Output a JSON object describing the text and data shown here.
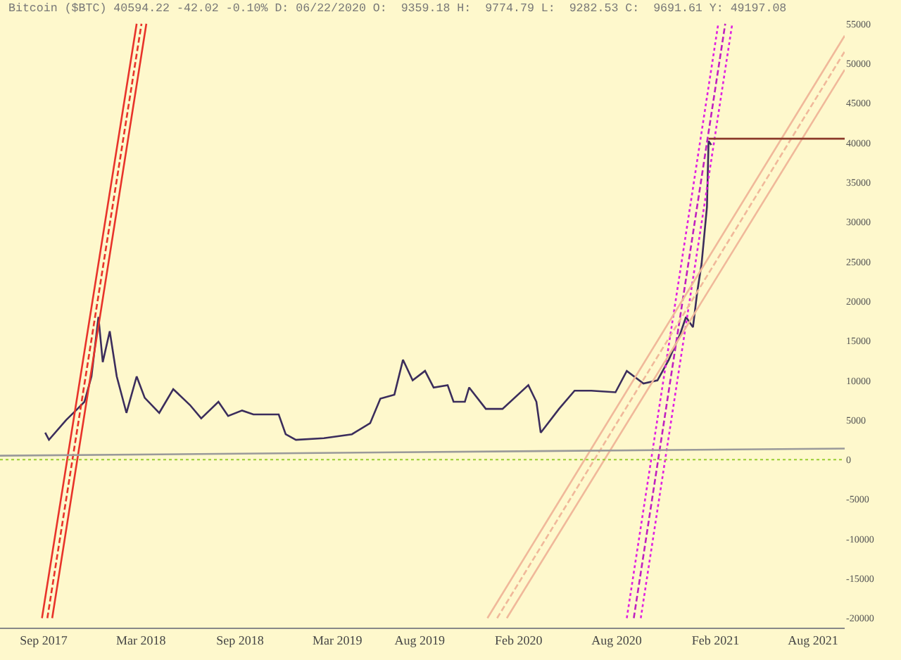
{
  "chart_data": {
    "type": "line",
    "title": "Bitcoin ($BTC) 40594.22 -42.02 -0.10% D: 06/22/2020 O:  9359.18 H:  9774.79 L:  9282.53 C:  9691.61 Y: 49197.08",
    "xlim": [
      "2017-06-12",
      "2021-09-29"
    ],
    "xticks": [
      {
        "value": "2017-09-01",
        "label": "Sep 2017"
      },
      {
        "value": "2018-03-01",
        "label": "Mar 2018"
      },
      {
        "value": "2018-09-01",
        "label": "Sep 2018"
      },
      {
        "value": "2019-03-01",
        "label": "Mar 2019"
      },
      {
        "value": "2019-08-01",
        "label": "Aug 2019"
      },
      {
        "value": "2020-02-01",
        "label": "Feb 2020"
      },
      {
        "value": "2020-08-01",
        "label": "Aug 2020"
      },
      {
        "value": "2021-02-01",
        "label": "Feb 2021"
      },
      {
        "value": "2021-08-01",
        "label": "Aug 2021"
      }
    ],
    "ylim": [
      -21200,
      58000
    ],
    "yticks": [
      -20000,
      -15000,
      -10000,
      -5000,
      0,
      5000,
      10000,
      15000,
      20000,
      25000,
      30000,
      35000,
      40000,
      45000,
      50000,
      55000
    ],
    "grid": false,
    "marker": "none",
    "ref_lines": [
      {
        "axis": "y",
        "value": 0,
        "color": "#9acd32",
        "line_style": "dotted"
      }
    ],
    "series": [
      {
        "color": "#3b2d5c",
        "line_style": "solid",
        "x": [
          "2017-09-04",
          "2017-09-11",
          "2017-10-13",
          "2017-11-03",
          "2017-11-16",
          "2017-11-29",
          "2017-12-12",
          "2017-12-20",
          "2018-01-02",
          "2018-01-15",
          "2018-02-02",
          "2018-02-21",
          "2018-03-08",
          "2018-04-04",
          "2018-04-30",
          "2018-05-31",
          "2018-06-21",
          "2018-07-23",
          "2018-08-10",
          "2018-09-05",
          "2018-09-26",
          "2018-11-12",
          "2018-11-25",
          "2018-12-14",
          "2019-02-04",
          "2019-03-28",
          "2019-05-01",
          "2019-05-20",
          "2019-06-15",
          "2019-07-01",
          "2019-07-19",
          "2019-08-11",
          "2019-08-27",
          "2019-09-22",
          "2019-10-03",
          "2019-10-24",
          "2019-11-01",
          "2019-12-02",
          "2020-01-02",
          "2020-02-19",
          "2020-03-05",
          "2020-03-13",
          "2020-04-16",
          "2020-05-15",
          "2020-06-15",
          "2020-07-30",
          "2020-08-20",
          "2020-09-20",
          "2020-10-16",
          "2020-11-06",
          "2020-11-27",
          "2020-12-08",
          "2020-12-21",
          "2020-12-29",
          "2021-01-06",
          "2021-01-16",
          "2021-01-19",
          "2021-01-24"
        ],
        "values": [
          3400,
          2500,
          5000,
          6400,
          7300,
          10500,
          18000,
          12300,
          16200,
          10500,
          5900,
          10500,
          7800,
          5900,
          8900,
          6900,
          5200,
          7300,
          5500,
          6200,
          5700,
          5700,
          3200,
          2500,
          2700,
          3200,
          4600,
          7700,
          8200,
          12600,
          10000,
          11200,
          9100,
          9400,
          7300,
          7300,
          9100,
          6400,
          6400,
          9400,
          7300,
          3400,
          6400,
          8700,
          8700,
          8500,
          11200,
          9600,
          10000,
          12600,
          15800,
          18000,
          16700,
          21200,
          24700,
          31900,
          40200,
          39700
        ]
      },
      {
        "color": "#e8332a",
        "line_style": "solid",
        "x": [
          "2017-08-29",
          "2018-02-21"
        ],
        "values": [
          -20000,
          55000
        ]
      },
      {
        "color": "#e8332a",
        "line_style": "dashed",
        "x": [
          "2017-09-08",
          "2018-03-02"
        ],
        "values": [
          -20000,
          55000
        ]
      },
      {
        "color": "#e8332a",
        "line_style": "solid",
        "x": [
          "2017-09-17",
          "2018-03-11"
        ],
        "values": [
          -20000,
          55000
        ]
      },
      {
        "color": "#e020e0",
        "line_style": "dotted",
        "x": [
          "2020-08-20",
          "2021-02-06"
        ],
        "values": [
          -20000,
          55000
        ]
      },
      {
        "color": "#c020c0",
        "line_style": "dashed",
        "x": [
          "2020-09-02",
          "2021-02-19"
        ],
        "values": [
          -20000,
          55000
        ]
      },
      {
        "color": "#e020e0",
        "line_style": "dotted",
        "x": [
          "2020-09-15",
          "2021-03-04"
        ],
        "values": [
          -20000,
          55000
        ]
      },
      {
        "color": "#f0b89a",
        "line_style": "solid",
        "x": [
          "2019-12-05",
          "2021-09-29"
        ],
        "values": [
          -20000,
          53500
        ]
      },
      {
        "color": "#f0b89a",
        "line_style": "dashed",
        "x": [
          "2019-12-23",
          "2021-09-29"
        ],
        "values": [
          -20000,
          51500
        ]
      },
      {
        "color": "#f0b89a",
        "line_style": "solid",
        "x": [
          "2020-01-10",
          "2021-09-29"
        ],
        "values": [
          -20000,
          49200
        ]
      },
      {
        "color": "#8b3a2a",
        "line_style": "solid",
        "x": [
          "2021-01-19",
          "2021-09-29"
        ],
        "values": [
          40500,
          40500
        ]
      },
      {
        "color": "#9a9a9a",
        "line_style": "solid",
        "x": [
          "2017-06-12",
          "2021-09-29"
        ],
        "values": [
          500,
          1400
        ]
      }
    ]
  }
}
